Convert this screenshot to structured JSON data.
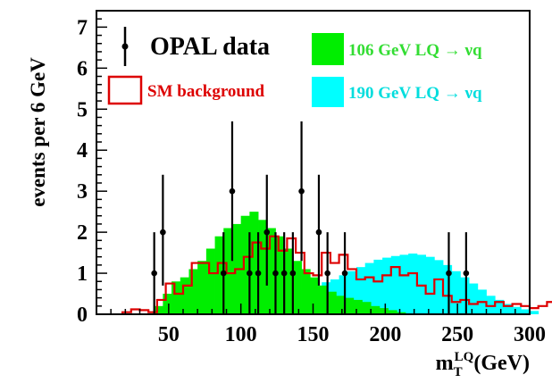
{
  "chart_data": {
    "type": "histogram",
    "bin_width_gev": 6,
    "xlabel": "m_T^LQ (GeV)",
    "xlabel_main": "m",
    "xlabel_sup": "LQ",
    "xlabel_sub": "T",
    "xlabel_units": "(GeV)",
    "ylabel": "events per 6 GeV",
    "xlim": [
      0,
      300
    ],
    "ylim": [
      0,
      7.4
    ],
    "x_ticks": [
      50,
      100,
      150,
      200,
      250,
      300
    ],
    "x_tick_labels": [
      "50",
      "100",
      "150",
      "200",
      "250",
      "300"
    ],
    "y_ticks": [
      0,
      1,
      2,
      3,
      4,
      5,
      6,
      7
    ],
    "y_tick_labels": [
      "0",
      "1",
      "2",
      "3",
      "4",
      "5",
      "6",
      "7"
    ],
    "legend": {
      "data_label": "OPAL data",
      "sm_label": "SM background",
      "lq106_label": "106 GeV LQ → νq",
      "lq190_label": "190 GeV LQ → νq"
    },
    "colors": {
      "data": "#000000",
      "sm_background": "#dd0000",
      "lq106": "#00ee00",
      "lq190": "#00ffff",
      "axis": "#000000"
    },
    "data_points": [
      {
        "x": 40,
        "y": 1,
        "yerr": [
          1.0,
          1.0
        ]
      },
      {
        "x": 46,
        "y": 2,
        "yerr": [
          1.3,
          1.4
        ]
      },
      {
        "x": 88,
        "y": 1,
        "yerr": [
          1.0,
          1.0
        ]
      },
      {
        "x": 94,
        "y": 3,
        "yerr": [
          1.7,
          1.7
        ]
      },
      {
        "x": 106,
        "y": 1,
        "yerr": [
          1.0,
          1.0
        ]
      },
      {
        "x": 112,
        "y": 1,
        "yerr": [
          1.0,
          1.0
        ]
      },
      {
        "x": 118,
        "y": 2,
        "yerr": [
          1.3,
          1.4
        ]
      },
      {
        "x": 124,
        "y": 1,
        "yerr": [
          1.0,
          1.0
        ]
      },
      {
        "x": 130,
        "y": 1,
        "yerr": [
          1.0,
          1.0
        ]
      },
      {
        "x": 136,
        "y": 1,
        "yerr": [
          1.0,
          1.0
        ]
      },
      {
        "x": 142,
        "y": 3,
        "yerr": [
          1.7,
          1.7
        ]
      },
      {
        "x": 154,
        "y": 2,
        "yerr": [
          1.3,
          1.4
        ]
      },
      {
        "x": 160,
        "y": 1,
        "yerr": [
          1.0,
          1.0
        ]
      },
      {
        "x": 172,
        "y": 1,
        "yerr": [
          1.0,
          1.0
        ]
      },
      {
        "x": 244,
        "y": 1,
        "yerr": [
          1.0,
          1.0
        ]
      },
      {
        "x": 256,
        "y": 1,
        "yerr": [
          1.0,
          1.0
        ]
      }
    ],
    "lq106_bins": {
      "edges_start": 40,
      "values": [
        0.2,
        0.5,
        0.8,
        0.9,
        1.1,
        1.3,
        1.6,
        1.9,
        2.1,
        2.2,
        2.4,
        2.5,
        2.3,
        2.1,
        1.9,
        1.6,
        1.3,
        1.1,
        0.9,
        0.7,
        0.55,
        0.45,
        0.4,
        0.35,
        0.3,
        0.2,
        0.15,
        0.1,
        0.05
      ]
    },
    "lq190_bins": {
      "edges_start": 60,
      "values": [
        0.03,
        0.05,
        0.07,
        0.1,
        0.13,
        0.17,
        0.22,
        0.27,
        0.33,
        0.4,
        0.45,
        0.5,
        0.55,
        0.6,
        0.65,
        0.7,
        0.78,
        0.85,
        0.95,
        1.05,
        1.15,
        1.25,
        1.33,
        1.38,
        1.42,
        1.45,
        1.48,
        1.45,
        1.4,
        1.32,
        1.2,
        1.05,
        0.9,
        0.75,
        0.6,
        0.45,
        0.35,
        0.25,
        0.18,
        0.12,
        0.08
      ]
    },
    "sm_bins": {
      "edges_start": 18,
      "values": [
        0.05,
        0.12,
        0.1,
        0.05,
        0.35,
        0.75,
        0.5,
        0.7,
        1.25,
        1.25,
        1.0,
        1.25,
        1.0,
        1.1,
        1.4,
        1.75,
        1.6,
        1.9,
        1.55,
        1.85,
        1.5,
        1.0,
        0.95,
        1.5,
        1.25,
        1.45,
        1.1,
        0.85,
        0.9,
        0.8,
        0.95,
        1.15,
        0.95,
        1.0,
        0.7,
        0.5,
        0.85,
        0.45,
        0.3,
        0.35,
        0.25,
        0.3,
        0.2,
        0.3,
        0.2,
        0.25,
        0.2,
        0.15,
        0.2,
        0.3,
        0.15,
        0.2,
        0.1,
        0.12,
        0.08,
        0.15,
        0.1,
        0.08,
        0.1,
        0.05
      ]
    }
  }
}
